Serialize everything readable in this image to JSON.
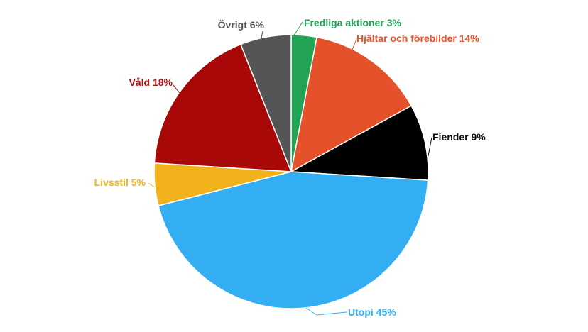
{
  "chart_data": {
    "type": "pie",
    "title": "",
    "slices": [
      {
        "name": "Fredliga aktioner",
        "value": 3,
        "label": "Fredliga aktioner 3%",
        "color": "#23A455"
      },
      {
        "name": "Hjältar och förebilder",
        "value": 14,
        "label": "Hjältar och förebilder 14%",
        "color": "#E5512A"
      },
      {
        "name": "Fiender",
        "value": 9,
        "label": "Fiender 9%",
        "color": "#000000"
      },
      {
        "name": "Utopi",
        "value": 45,
        "label": "Utopi 45%",
        "color": "#33AEF3"
      },
      {
        "name": "Livsstil",
        "value": 5,
        "label": "Livsstil 5%",
        "color": "#F2B21C"
      },
      {
        "name": "Våld",
        "value": 18,
        "label": "Våld 18%",
        "color": "#A80808"
      },
      {
        "name": "Övrigt",
        "value": 6,
        "label": "Övrigt 6%",
        "color": "#555555"
      }
    ],
    "label_colors": {
      "Fredliga aktioner": "#23A455",
      "Hjältar och förebilder": "#E5512A",
      "Fiender": "#111111",
      "Utopi": "#33AEF3",
      "Livsstil": "#F2B21C",
      "Våld": "#B01010",
      "Övrigt": "#555555"
    },
    "start_angle": "12 o'clock",
    "direction": "clockwise",
    "legend": "none",
    "data_labels": "outside with leader lines"
  }
}
